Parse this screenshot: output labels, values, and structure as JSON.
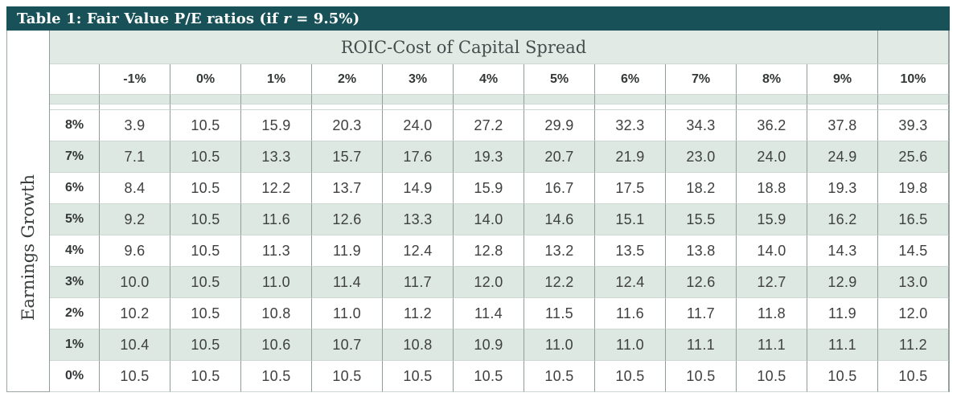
{
  "title": {
    "prefix": "Table 1: Fair Value P/E ratios (if ",
    "r": "r",
    "suffix": " = 9.5%)"
  },
  "colors": {
    "title_bar": "#195159",
    "band_green": "#e1eae4",
    "row_green": "#dee8e2",
    "grid_line": "#8f9c9a",
    "row_line": "#ccd7d1",
    "title_text": "#ffffff",
    "text": "#3e4140"
  },
  "chart_data": {
    "type": "table",
    "title": "Table 1: Fair Value P/E ratios (if r = 9.5%)",
    "column_group_label": "ROIC-Cost of Capital Spread",
    "row_group_label": "Earnings Growth",
    "columns": [
      "-1%",
      "0%",
      "1%",
      "2%",
      "3%",
      "4%",
      "5%",
      "6%",
      "7%",
      "8%",
      "9%",
      "10%"
    ],
    "row_labels": [
      "8%",
      "7%",
      "6%",
      "5%",
      "4%",
      "3%",
      "2%",
      "1%",
      "0%"
    ],
    "values": [
      [
        "3.9",
        "10.5",
        "15.9",
        "20.3",
        "24.0",
        "27.2",
        "29.9",
        "32.3",
        "34.3",
        "36.2",
        "37.8",
        "39.3"
      ],
      [
        "7.1",
        "10.5",
        "13.3",
        "15.7",
        "17.6",
        "19.3",
        "20.7",
        "21.9",
        "23.0",
        "24.0",
        "24.9",
        "25.6"
      ],
      [
        "8.4",
        "10.5",
        "12.2",
        "13.7",
        "14.9",
        "15.9",
        "16.7",
        "17.5",
        "18.2",
        "18.8",
        "19.3",
        "19.8"
      ],
      [
        "9.2",
        "10.5",
        "11.6",
        "12.6",
        "13.3",
        "14.0",
        "14.6",
        "15.1",
        "15.5",
        "15.9",
        "16.2",
        "16.5"
      ],
      [
        "9.6",
        "10.5",
        "11.3",
        "11.9",
        "12.4",
        "12.8",
        "13.2",
        "13.5",
        "13.8",
        "14.0",
        "14.3",
        "14.5"
      ],
      [
        "10.0",
        "10.5",
        "11.0",
        "11.4",
        "11.7",
        "12.0",
        "12.2",
        "12.4",
        "12.6",
        "12.7",
        "12.9",
        "13.0"
      ],
      [
        "10.2",
        "10.5",
        "10.8",
        "11.0",
        "11.2",
        "11.4",
        "11.5",
        "11.6",
        "11.7",
        "11.8",
        "11.9",
        "12.0"
      ],
      [
        "10.4",
        "10.5",
        "10.6",
        "10.7",
        "10.8",
        "10.9",
        "11.0",
        "11.0",
        "11.1",
        "11.1",
        "11.1",
        "11.2"
      ],
      [
        "10.5",
        "10.5",
        "10.5",
        "10.5",
        "10.5",
        "10.5",
        "10.5",
        "10.5",
        "10.5",
        "10.5",
        "10.5",
        "10.5"
      ]
    ]
  }
}
